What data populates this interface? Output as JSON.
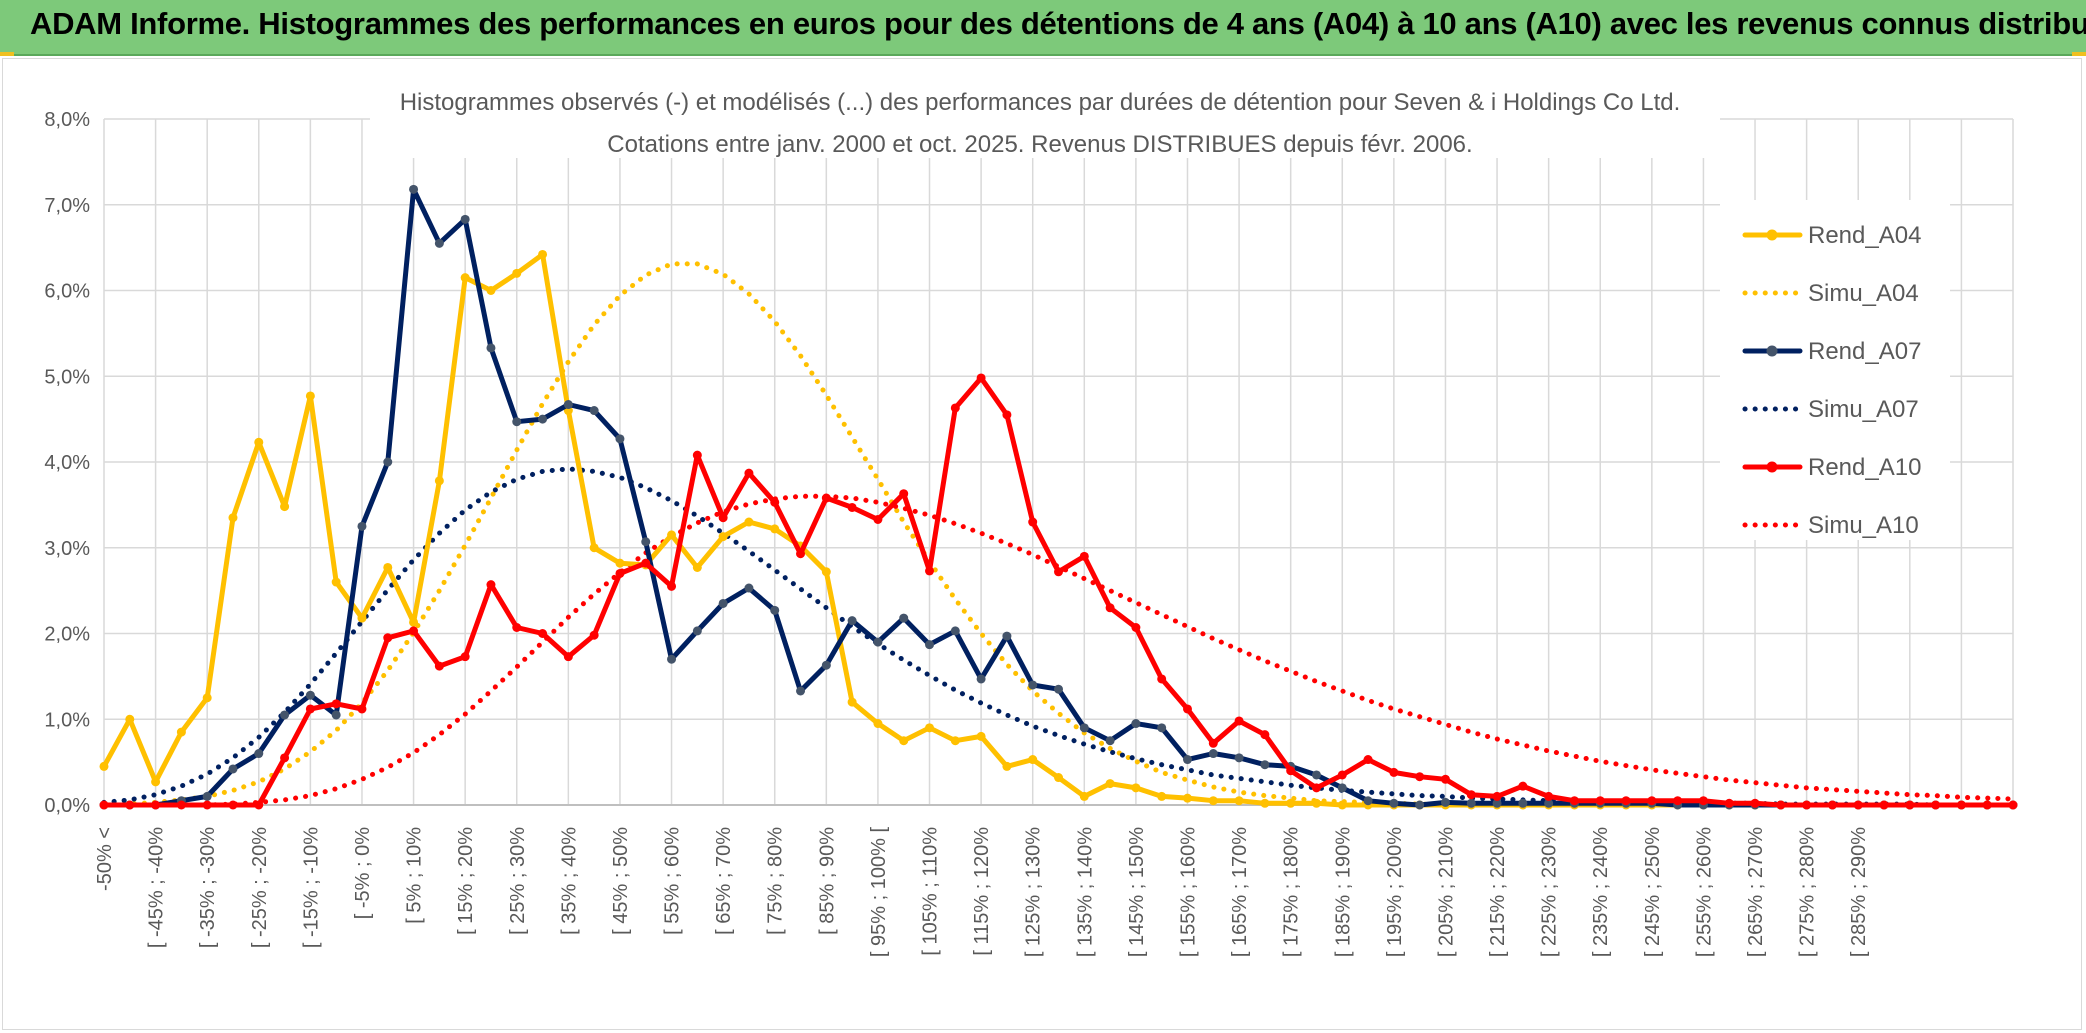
{
  "banner": {
    "title": "ADAM Informe. Histogrammes des performances en euros pour des détentions de 4 ans (A04) à 10 ans (A10) avec les revenus connus distribués"
  },
  "chart_data": {
    "type": "line",
    "title": "Histogrammes observés (-) et modélisés (...) des performances par durées de détention pour Seven & i Holdings Co Ltd.",
    "subtitle": "Cotations entre janv. 2000 et oct. 2025. Revenus DISTRIBUES depuis févr. 2006.",
    "xlabel": "",
    "ylabel": "",
    "ylim": [
      0,
      8
    ],
    "yticks": [
      "0,0%",
      "1,0%",
      "2,0%",
      "3,0%",
      "4,0%",
      "5,0%",
      "6,0%",
      "7,0%",
      "8,0%"
    ],
    "grid": true,
    "legend_position": "right",
    "x_labels": [
      "-50% <",
      "[ -45% ; -40%",
      "[ -35% ; -30%",
      "[ -25% ; -20%",
      "[ -15% ; -10%",
      "[ -5% ; 0%",
      "[ 5% ; 10%",
      "[ 15% ; 20%",
      "[ 25% ; 30%",
      "[ 35% ; 40%",
      "[ 45% ; 50%",
      "[ 55% ; 60%",
      "[ 65% ; 70%",
      "[ 75% ; 80%",
      "[ 85% ; 90%",
      "[ 95% ; 100% [",
      "[ 105% ; 110%",
      "[ 115% ; 120%",
      "[ 125% ; 130%",
      "[ 135% ; 140%",
      "[ 145% ; 150%",
      "[ 155% ; 160%",
      "[ 165% ; 170%",
      "[ 175% ; 180%",
      "[ 185% ; 190%",
      "[ 195% ; 200%",
      "[ 205% ; 210%",
      "[ 215% ; 220%",
      "[ 225% ; 230%",
      "[ 235% ; 240%",
      "[ 245% ; 250%",
      "[ 255% ; 260%",
      "[ 265% ; 270%",
      "[ 275% ; 280%",
      "[ 285% ; 290%"
    ],
    "series": [
      {
        "name": "Rend_A04",
        "color": "#ffc000",
        "style": "solid",
        "values": [
          0.45,
          1.0,
          0.27,
          0.85,
          1.25,
          3.35,
          4.23,
          3.48,
          4.77,
          2.6,
          2.18,
          2.77,
          2.13,
          3.78,
          6.15,
          6.0,
          6.2,
          6.42,
          4.6,
          3.0,
          2.82,
          2.8,
          3.15,
          2.77,
          3.13,
          3.3,
          3.22,
          3.02,
          2.72,
          1.2,
          0.95,
          0.75,
          0.9,
          0.75,
          0.8,
          0.45,
          0.53,
          0.32,
          0.1,
          0.25,
          0.2,
          0.1,
          0.08,
          0.05,
          0.05,
          0.02,
          0.02,
          0.02,
          0.0,
          0.0,
          0.0,
          0.0,
          0.0,
          0.0,
          0.0,
          0.0,
          0.0,
          0.0,
          0.0,
          0.0,
          0.0,
          0.0,
          0.0,
          0.0,
          0.0,
          0.0,
          0.0,
          0.0,
          0.0,
          0.0,
          0.0,
          0.0,
          0.0,
          0.0,
          0.0
        ]
      },
      {
        "name": "Simu_A04",
        "color": "#ffc000",
        "style": "dotted",
        "values": [
          0.0,
          0.01,
          0.03,
          0.06,
          0.1,
          0.17,
          0.27,
          0.42,
          0.62,
          0.87,
          1.19,
          1.57,
          2.01,
          2.5,
          3.03,
          3.58,
          4.14,
          4.68,
          5.17,
          5.6,
          5.94,
          6.18,
          6.31,
          6.31,
          6.19,
          5.96,
          5.64,
          5.24,
          4.78,
          4.29,
          3.8,
          3.3,
          2.84,
          2.4,
          2.0,
          1.64,
          1.33,
          1.07,
          0.84,
          0.66,
          0.51,
          0.38,
          0.29,
          0.21,
          0.15,
          0.11,
          0.08,
          0.05,
          0.04,
          0.03,
          0.02,
          0.01,
          0.0,
          0.0,
          0.0,
          0.0,
          0.0,
          0.0,
          0.0,
          0.0,
          0.0,
          0.0,
          0.0,
          0.0,
          0.0,
          0.0,
          0.0,
          0.0,
          0.0,
          0.0,
          0.0,
          0.0,
          0.0,
          0.0,
          0.0
        ]
      },
      {
        "name": "Rend_A07",
        "color": "#002060",
        "style": "solid",
        "values": [
          0.0,
          0.0,
          0.0,
          0.05,
          0.1,
          0.42,
          0.6,
          1.05,
          1.28,
          1.05,
          3.25,
          4.0,
          7.18,
          6.55,
          6.83,
          5.33,
          4.47,
          4.5,
          4.67,
          4.6,
          4.27,
          3.07,
          1.7,
          2.03,
          2.35,
          2.53,
          2.27,
          1.33,
          1.63,
          2.15,
          1.9,
          2.18,
          1.87,
          2.03,
          1.47,
          1.97,
          1.4,
          1.35,
          0.9,
          0.75,
          0.95,
          0.9,
          0.53,
          0.6,
          0.55,
          0.47,
          0.45,
          0.35,
          0.2,
          0.05,
          0.02,
          0.0,
          0.03,
          0.02,
          0.02,
          0.02,
          0.02,
          0.02,
          0.02,
          0.02,
          0.02,
          0.0,
          0.0,
          0.0,
          0.0,
          0.0,
          0.0,
          0.0,
          0.0,
          0.0,
          0.0,
          0.0,
          0.0,
          0.0,
          0.0
        ]
      },
      {
        "name": "Simu_A07",
        "color": "#002060",
        "style": "dotted",
        "values": [
          0.03,
          0.06,
          0.12,
          0.22,
          0.36,
          0.55,
          0.79,
          1.08,
          1.41,
          1.77,
          2.14,
          2.51,
          2.86,
          3.17,
          3.44,
          3.65,
          3.8,
          3.89,
          3.92,
          3.89,
          3.82,
          3.7,
          3.55,
          3.37,
          3.17,
          2.96,
          2.74,
          2.52,
          2.3,
          2.08,
          1.88,
          1.69,
          1.51,
          1.34,
          1.19,
          1.05,
          0.92,
          0.81,
          0.71,
          0.62,
          0.54,
          0.47,
          0.41,
          0.35,
          0.31,
          0.27,
          0.23,
          0.2,
          0.17,
          0.15,
          0.13,
          0.11,
          0.1,
          0.08,
          0.07,
          0.06,
          0.05,
          0.05,
          0.04,
          0.04,
          0.03,
          0.03,
          0.02,
          0.02,
          0.02,
          0.01,
          0.01,
          0.01,
          0.01,
          0.01,
          0.01,
          0.0,
          0.0,
          0.0,
          0.0
        ]
      },
      {
        "name": "Rend_A10",
        "color": "#ff0000",
        "style": "solid",
        "values": [
          0.0,
          0.0,
          0.0,
          0.0,
          0.0,
          0.0,
          0.0,
          0.55,
          1.12,
          1.18,
          1.12,
          1.95,
          2.03,
          1.62,
          1.73,
          2.57,
          2.07,
          2.0,
          1.73,
          1.98,
          2.7,
          2.82,
          2.55,
          4.08,
          3.35,
          3.87,
          3.53,
          2.93,
          3.58,
          3.47,
          3.33,
          3.63,
          2.73,
          4.63,
          4.98,
          4.55,
          3.3,
          2.72,
          2.9,
          2.3,
          2.07,
          1.47,
          1.12,
          0.72,
          0.98,
          0.82,
          0.4,
          0.2,
          0.35,
          0.53,
          0.38,
          0.33,
          0.3,
          0.12,
          0.1,
          0.22,
          0.1,
          0.05,
          0.05,
          0.05,
          0.05,
          0.05,
          0.05,
          0.02,
          0.02,
          0.0,
          0.0,
          0.0,
          0.0,
          0.0,
          0.0,
          0.0,
          0.0,
          0.0,
          0.0
        ]
      },
      {
        "name": "Simu_A10",
        "color": "#ff0000",
        "style": "dotted",
        "values": [
          0.0,
          0.0,
          0.0,
          0.0,
          0.0,
          0.01,
          0.03,
          0.06,
          0.11,
          0.19,
          0.3,
          0.44,
          0.61,
          0.82,
          1.06,
          1.33,
          1.61,
          1.9,
          2.19,
          2.46,
          2.71,
          2.94,
          3.13,
          3.29,
          3.42,
          3.51,
          3.57,
          3.6,
          3.6,
          3.58,
          3.53,
          3.46,
          3.38,
          3.28,
          3.17,
          3.05,
          2.92,
          2.78,
          2.64,
          2.5,
          2.36,
          2.22,
          2.08,
          1.94,
          1.81,
          1.68,
          1.56,
          1.44,
          1.33,
          1.22,
          1.12,
          1.03,
          0.94,
          0.85,
          0.77,
          0.7,
          0.63,
          0.57,
          0.51,
          0.46,
          0.41,
          0.37,
          0.33,
          0.29,
          0.26,
          0.23,
          0.2,
          0.18,
          0.16,
          0.14,
          0.12,
          0.11,
          0.09,
          0.08,
          0.07
        ]
      }
    ]
  }
}
